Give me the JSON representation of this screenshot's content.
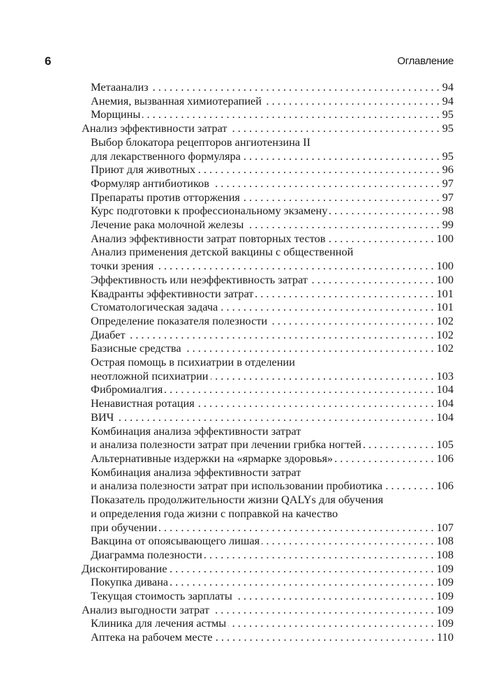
{
  "header": {
    "page_number": "6",
    "title": "Оглавление"
  },
  "toc": [
    {
      "level": 1,
      "lines": [
        "Метаанализ"
      ],
      "page": "94"
    },
    {
      "level": 1,
      "lines": [
        "Анемия, вызванная химиотерапией"
      ],
      "page": "94"
    },
    {
      "level": 1,
      "lines": [
        "Морщины"
      ],
      "page": "95"
    },
    {
      "level": 0,
      "lines": [
        "Анализ эффективности затрат"
      ],
      "page": "95"
    },
    {
      "level": 1,
      "lines": [
        "Выбор блокатора рецепторов ангиотензина II",
        "для лекарственного формуляра"
      ],
      "page": "95"
    },
    {
      "level": 1,
      "lines": [
        "Приют для животных"
      ],
      "page": "96"
    },
    {
      "level": 1,
      "lines": [
        "Формуляр антибиотиков"
      ],
      "page": "97"
    },
    {
      "level": 1,
      "lines": [
        "Препараты против отторжения"
      ],
      "page": "97"
    },
    {
      "level": 1,
      "lines": [
        "Курс подготовки к профессиональному экзамену"
      ],
      "page": "98"
    },
    {
      "level": 1,
      "lines": [
        "Лечение рака молочной железы"
      ],
      "page": "99"
    },
    {
      "level": 1,
      "lines": [
        "Анализ эффективности затрат повторных тестов"
      ],
      "page": "100"
    },
    {
      "level": 1,
      "lines": [
        "Анализ применения детской вакцины с общественной",
        "точки зрения"
      ],
      "page": "100"
    },
    {
      "level": 1,
      "lines": [
        "Эффективность или неэффективность затрат"
      ],
      "page": "100"
    },
    {
      "level": 1,
      "lines": [
        "Квадранты эффективности затрат"
      ],
      "page": "101"
    },
    {
      "level": 1,
      "lines": [
        "Стоматологическая задача"
      ],
      "page": "101"
    },
    {
      "level": 1,
      "lines": [
        "Определение показателя полезности"
      ],
      "page": "102"
    },
    {
      "level": 1,
      "lines": [
        "Диабет"
      ],
      "page": "102"
    },
    {
      "level": 1,
      "lines": [
        "Базисные средства"
      ],
      "page": "102"
    },
    {
      "level": 1,
      "lines": [
        "Острая помощь в психиатрии в отделении",
        "неотложной психиатрии"
      ],
      "page": "103"
    },
    {
      "level": 1,
      "lines": [
        "Фибромиалгия"
      ],
      "page": "104"
    },
    {
      "level": 1,
      "lines": [
        "Ненавистная ротация"
      ],
      "page": "104"
    },
    {
      "level": 1,
      "lines": [
        "ВИЧ"
      ],
      "page": "104"
    },
    {
      "level": 1,
      "lines": [
        "Комбинация анализа эффективности затрат",
        "и анализа полезности затрат при лечении грибка ногтей"
      ],
      "page": "105"
    },
    {
      "level": 1,
      "lines": [
        "Альтернативные издержки на «ярмарке здоровья»"
      ],
      "page": "106"
    },
    {
      "level": 1,
      "lines": [
        "Комбинация анализа эффективности затрат",
        "и анализа полезности затрат при использовании пробиотика"
      ],
      "page": "106"
    },
    {
      "level": 1,
      "lines": [
        "Показатель продолжительности жизни QALYs для обучения",
        "и определения года жизни с поправкой на качество",
        "при обучении"
      ],
      "page": "107"
    },
    {
      "level": 1,
      "lines": [
        "Вакцина от опоясывающего лишая"
      ],
      "page": "108"
    },
    {
      "level": 1,
      "lines": [
        "Диаграмма полезности"
      ],
      "page": "108"
    },
    {
      "level": 0,
      "lines": [
        "Дисконтирование"
      ],
      "page": "109"
    },
    {
      "level": 1,
      "lines": [
        "Покупка дивана"
      ],
      "page": "109"
    },
    {
      "level": 1,
      "lines": [
        "Текущая стоимость зарплаты"
      ],
      "page": "109"
    },
    {
      "level": 0,
      "lines": [
        "Анализ выгодности затрат"
      ],
      "page": "109"
    },
    {
      "level": 1,
      "lines": [
        "Клиника для лечения астмы"
      ],
      "page": "109"
    },
    {
      "level": 1,
      "lines": [
        "Аптека на рабочем месте"
      ],
      "page": "110"
    }
  ]
}
